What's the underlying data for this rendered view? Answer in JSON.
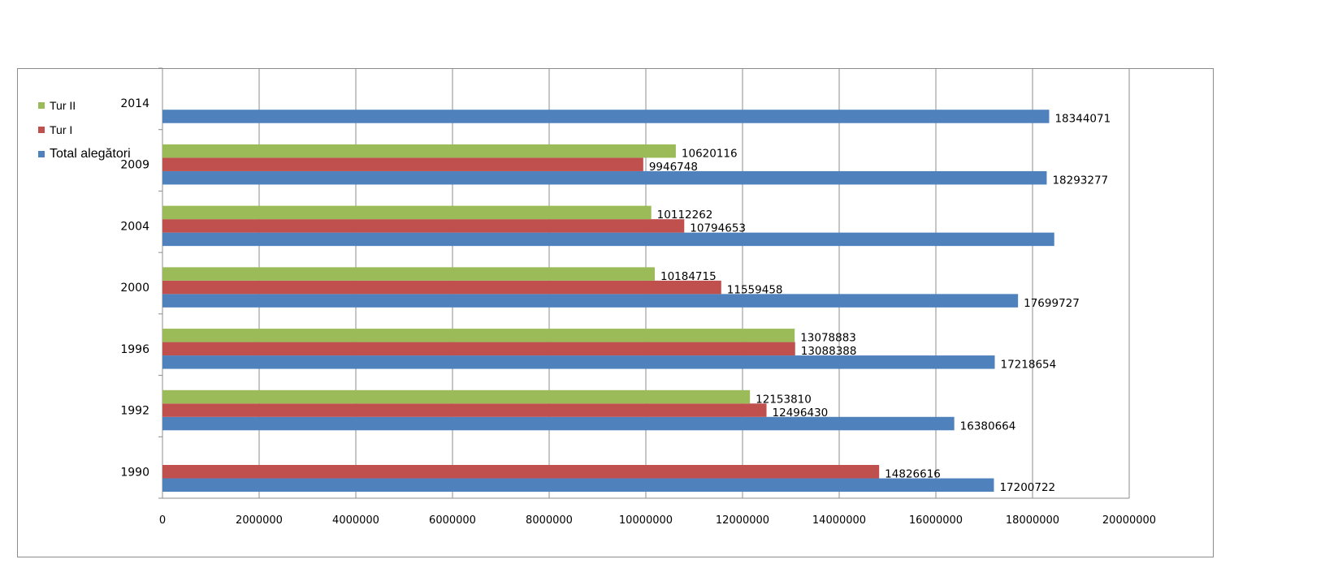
{
  "chart_data": {
    "type": "bar",
    "orientation": "horizontal",
    "categories": [
      "1990",
      "1992",
      "1996",
      "2000",
      "2004",
      "2009",
      "2014"
    ],
    "series": [
      {
        "name": "Total alegători",
        "color": "#4f81bd",
        "values": [
          17200722,
          16380664,
          17218654,
          17699727,
          18449344,
          18293277,
          18344071
        ],
        "labels": [
          "17200722",
          "16380664",
          "17218654",
          "17699727",
          "",
          "18293277",
          "18344071"
        ]
      },
      {
        "name": "Tur I",
        "color": "#c0504d",
        "values": [
          14826616,
          12496430,
          13088388,
          11559458,
          10794653,
          9946748,
          null
        ],
        "labels": [
          "14826616",
          "12496430",
          "13088388",
          "11559458",
          "10794653",
          "9946748",
          ""
        ]
      },
      {
        "name": "Tur II",
        "color": "#9bbb59",
        "values": [
          null,
          12153810,
          13078883,
          10184715,
          10112262,
          10620116,
          null
        ],
        "labels": [
          "",
          "12153810",
          "13078883",
          "10184715",
          "10112262",
          "10620116",
          ""
        ]
      }
    ],
    "xlim": [
      0,
      20000000
    ],
    "x_ticks": [
      "0",
      "2000000",
      "4000000",
      "6000000",
      "8000000",
      "10000000",
      "12000000",
      "14000000",
      "16000000",
      "18000000",
      "20000000"
    ],
    "grid": "vertical major gridlines",
    "legend_position": "top-left"
  },
  "legend": [
    {
      "label": "Tur II",
      "color": "#9bbb59"
    },
    {
      "label": "Tur I",
      "color": "#c0504d"
    },
    {
      "label": "Total alegători",
      "color": "#4f81bd"
    }
  ]
}
